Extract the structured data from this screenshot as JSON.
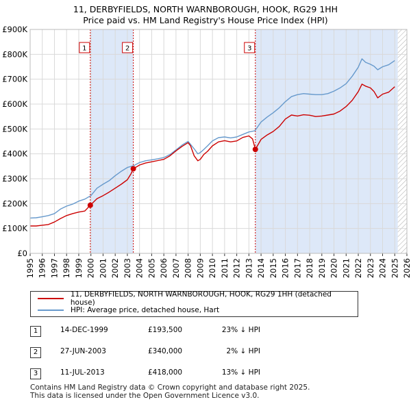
{
  "title_line1": "11, DERBYFIELDS, NORTH WARNBOROUGH, HOOK, RG29 1HH",
  "title_line2": "Price paid vs. HM Land Registry's House Price Index (HPI)",
  "colors": {
    "property": "#cc0000",
    "hpi": "#6699cc",
    "shade": "#dde8f8",
    "grid": "#d9d9d9",
    "vline": "#cc0000"
  },
  "chart_data": {
    "type": "line",
    "title": "Price paid vs. HM Land Registry's House Price Index (HPI)",
    "xlabel": "",
    "ylabel": "",
    "xlim": [
      1995,
      2026
    ],
    "ylim": [
      0,
      900000
    ],
    "grid": true,
    "y_ticks": [
      0,
      100000,
      200000,
      300000,
      400000,
      500000,
      600000,
      700000,
      800000,
      900000
    ],
    "y_tick_labels": [
      "£0",
      "£100K",
      "£200K",
      "£300K",
      "£400K",
      "£500K",
      "£600K",
      "£700K",
      "£800K",
      "£900K"
    ],
    "x_ticks": [
      1995,
      1996,
      1997,
      1998,
      1999,
      2000,
      2001,
      2002,
      2003,
      2004,
      2005,
      2006,
      2007,
      2008,
      2009,
      2010,
      2011,
      2012,
      2013,
      2014,
      2015,
      2016,
      2017,
      2018,
      2019,
      2020,
      2021,
      2022,
      2023,
      2024,
      2025,
      2026
    ],
    "x_tick_labels": [
      "1995",
      "1996",
      "1997",
      "1998",
      "1999",
      "2000",
      "2001",
      "2002",
      "2003",
      "2004",
      "2005",
      "2006",
      "2007",
      "2008",
      "2009",
      "2010",
      "2011",
      "2012",
      "2013",
      "2014",
      "2015",
      "2016",
      "2017",
      "2018",
      "2019",
      "2020",
      "2021",
      "2022",
      "2023",
      "2024",
      "2025",
      "2026"
    ],
    "shaded_ranges": [
      [
        1999.95,
        2003.49
      ],
      [
        2013.53,
        2025.25
      ]
    ],
    "hatched_after": 2025.25,
    "series": [
      {
        "name": "11, DERBYFIELDS, NORTH WARNBOROUGH, HOOK, RG29 1HH (detached house)",
        "color": "#cc0000",
        "x": [
          1995.0,
          1995.5,
          1996.0,
          1996.5,
          1997.0,
          1997.5,
          1998.0,
          1998.5,
          1999.0,
          1999.5,
          1999.95,
          2000.5,
          2001.0,
          2001.5,
          2002.0,
          2002.5,
          2003.0,
          2003.3,
          2003.49,
          2004.0,
          2004.5,
          2005.0,
          2005.5,
          2006.0,
          2006.5,
          2007.0,
          2007.5,
          2008.0,
          2008.2,
          2008.5,
          2008.8,
          2009.0,
          2009.3,
          2009.6,
          2010.0,
          2010.5,
          2011.0,
          2011.5,
          2012.0,
          2012.5,
          2013.0,
          2013.3,
          2013.53,
          2014.0,
          2014.5,
          2015.0,
          2015.5,
          2016.0,
          2016.5,
          2017.0,
          2017.5,
          2018.0,
          2018.5,
          2019.0,
          2019.5,
          2020.0,
          2020.5,
          2021.0,
          2021.5,
          2022.0,
          2022.3,
          2022.6,
          2023.0,
          2023.3,
          2023.6,
          2024.0,
          2024.5,
          2025.0
        ],
        "y": [
          110000,
          110000,
          113000,
          116000,
          126000,
          140000,
          152000,
          160000,
          166000,
          170000,
          193500,
          220000,
          232000,
          246000,
          262000,
          278000,
          296000,
          320000,
          340000,
          355000,
          363000,
          368000,
          373000,
          378000,
          392000,
          412000,
          430000,
          445000,
          432000,
          392000,
          372000,
          378000,
          398000,
          410000,
          432000,
          448000,
          453000,
          448000,
          452000,
          466000,
          472000,
          460000,
          418000,
          458000,
          476000,
          490000,
          510000,
          540000,
          556000,
          552000,
          557000,
          555000,
          550000,
          552000,
          556000,
          560000,
          572000,
          590000,
          615000,
          650000,
          680000,
          672000,
          665000,
          650000,
          625000,
          640000,
          648000,
          670000
        ]
      },
      {
        "name": "HPI: Average price, detached house, Hart",
        "color": "#6699cc",
        "x": [
          1995.0,
          1995.5,
          1996.0,
          1996.5,
          1997.0,
          1997.5,
          1998.0,
          1998.5,
          1999.0,
          1999.5,
          2000.0,
          2000.5,
          2001.0,
          2001.5,
          2002.0,
          2002.5,
          2003.0,
          2003.5,
          2004.0,
          2004.5,
          2005.0,
          2005.5,
          2006.0,
          2006.5,
          2007.0,
          2007.5,
          2008.0,
          2008.5,
          2008.8,
          2009.0,
          2009.3,
          2009.6,
          2010.0,
          2010.5,
          2011.0,
          2011.5,
          2012.0,
          2012.5,
          2013.0,
          2013.5,
          2014.0,
          2014.5,
          2015.0,
          2015.5,
          2016.0,
          2016.5,
          2017.0,
          2017.5,
          2018.0,
          2018.5,
          2019.0,
          2019.5,
          2020.0,
          2020.5,
          2021.0,
          2021.5,
          2022.0,
          2022.3,
          2022.6,
          2023.0,
          2023.3,
          2023.6,
          2024.0,
          2024.5,
          2025.0
        ],
        "y": [
          142000,
          143000,
          147000,
          152000,
          160000,
          178000,
          190000,
          198000,
          210000,
          218000,
          232000,
          262000,
          278000,
          292000,
          312000,
          330000,
          345000,
          352000,
          365000,
          372000,
          376000,
          380000,
          385000,
          397000,
          416000,
          435000,
          450000,
          420000,
          400000,
          405000,
          418000,
          432000,
          452000,
          465000,
          468000,
          464000,
          468000,
          478000,
          488000,
          493000,
          528000,
          548000,
          565000,
          585000,
          610000,
          630000,
          638000,
          642000,
          640000,
          638000,
          638000,
          642000,
          652000,
          665000,
          682000,
          712000,
          748000,
          782000,
          768000,
          760000,
          752000,
          738000,
          750000,
          758000,
          775000
        ]
      }
    ],
    "sales": [
      {
        "label": "1",
        "x": 1999.95,
        "y": 193500
      },
      {
        "label": "2",
        "x": 2003.49,
        "y": 340000
      },
      {
        "label": "3",
        "x": 2013.53,
        "y": 418000
      }
    ]
  },
  "legend": {
    "property": "11, DERBYFIELDS, NORTH WARNBOROUGH, HOOK, RG29 1HH (detached house)",
    "hpi": "HPI: Average price, detached house, Hart"
  },
  "transactions": [
    {
      "num": "1",
      "date": "14-DEC-1999",
      "price": "£193,500",
      "hpi": "23% ↓ HPI"
    },
    {
      "num": "2",
      "date": "27-JUN-2003",
      "price": "£340,000",
      "hpi": "2% ↓ HPI"
    },
    {
      "num": "3",
      "date": "11-JUL-2013",
      "price": "£418,000",
      "hpi": "13% ↓ HPI"
    }
  ],
  "footer_line1": "Contains HM Land Registry data © Crown copyright and database right 2025.",
  "footer_line2": "This data is licensed under the Open Government Licence v3.0."
}
